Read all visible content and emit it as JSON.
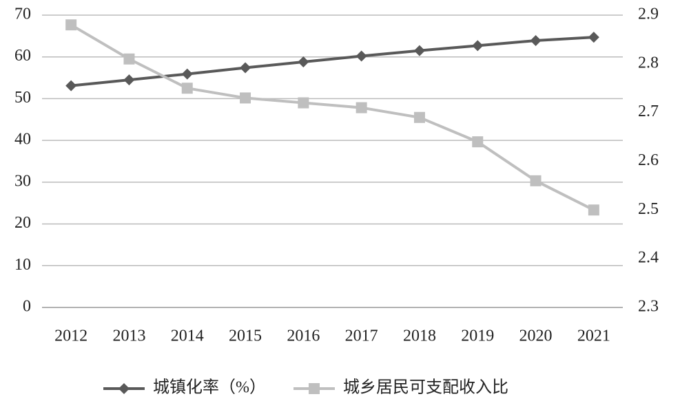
{
  "chart_data": {
    "type": "line",
    "categories": [
      "2012",
      "2013",
      "2014",
      "2015",
      "2016",
      "2017",
      "2018",
      "2019",
      "2020",
      "2021"
    ],
    "series": [
      {
        "name": "城镇化率（%）",
        "color": "#595959",
        "marker": "diamond",
        "values": [
          53.1,
          54.5,
          55.9,
          57.4,
          58.8,
          60.2,
          61.5,
          62.7,
          63.9,
          64.7
        ]
      },
      {
        "name": "城乡居民可支配收入比",
        "color": "#bfbfbf",
        "marker": "square",
        "axis": "y2",
        "values": [
          2.88,
          2.81,
          2.75,
          2.73,
          2.72,
          2.71,
          2.69,
          2.64,
          2.56,
          2.5
        ]
      }
    ],
    "ylim": [
      0,
      70
    ],
    "yticks": [
      0,
      10,
      20,
      30,
      40,
      50,
      60,
      70
    ],
    "y2lim": [
      2.3,
      2.9
    ],
    "y2ticks": [
      2.3,
      2.4,
      2.5,
      2.6,
      2.7,
      2.8,
      2.9
    ],
    "grid": true,
    "legend": "bottom"
  }
}
